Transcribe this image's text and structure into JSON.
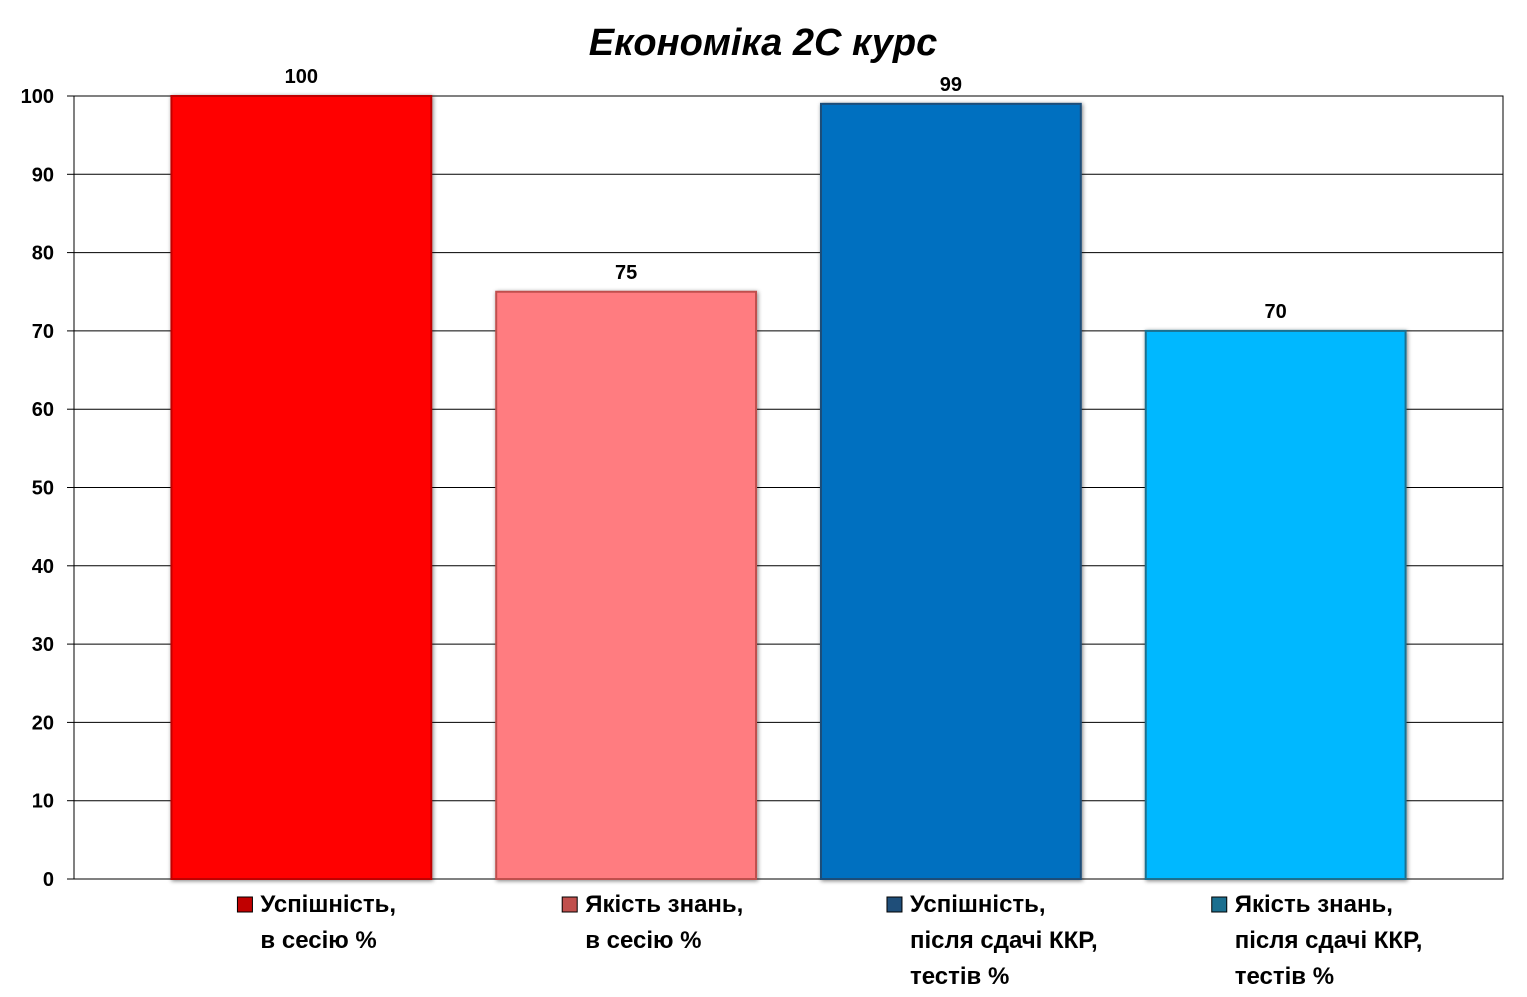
{
  "chart_data": {
    "type": "bar",
    "title": "Економіка 2С курс",
    "xlabel": "",
    "ylabel": "",
    "ylim": [
      0,
      100
    ],
    "yticks": [
      "0",
      "10",
      "20",
      "30",
      "40",
      "50",
      "60",
      "70",
      "80",
      "90",
      "100"
    ],
    "grid": true,
    "legend_position": "bottom",
    "series": [
      {
        "label_lines": [
          "Успішність,",
          "в сесію %"
        ],
        "value": 100,
        "value_label": "100",
        "color": "#ff0000",
        "marker_color": "#c00000"
      },
      {
        "label_lines": [
          "Якість знань,",
          "в сесію %"
        ],
        "value": 75,
        "value_label": "75",
        "color": "#ff7c80",
        "marker_color": "#c0504d"
      },
      {
        "label_lines": [
          "Успішність,",
          "після сдачі ККР,",
          "тестів %"
        ],
        "value": 99,
        "value_label": "99",
        "color": "#0070c0",
        "marker_color": "#1f4e79"
      },
      {
        "label_lines": [
          "Якість знань,",
          "після сдачі ККР,",
          "тестів %"
        ],
        "value": 70,
        "value_label": "70",
        "color": "#00b8ff",
        "marker_color": "#1b6f8f"
      }
    ]
  }
}
